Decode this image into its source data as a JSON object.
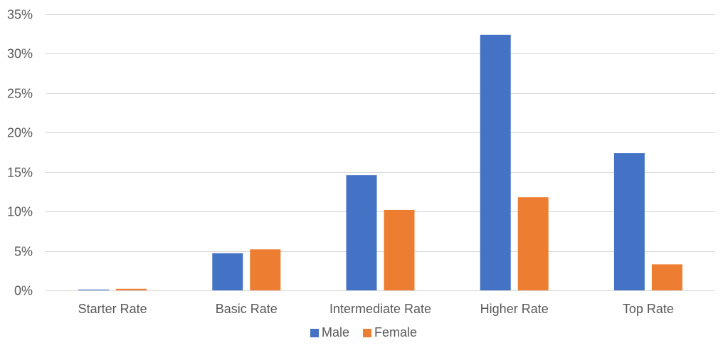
{
  "chart_data": {
    "type": "bar",
    "title": "",
    "xlabel": "",
    "ylabel": "",
    "categories": [
      "Starter Rate",
      "Basic Rate",
      "Intermediate Rate",
      "Higher Rate",
      "Top Rate"
    ],
    "series": [
      {
        "name": "Male",
        "color": "#4472c4",
        "values": [
          0.1,
          4.7,
          14.6,
          32.4,
          17.4
        ]
      },
      {
        "name": "Female",
        "color": "#ed7d31",
        "values": [
          0.2,
          5.2,
          10.2,
          11.8,
          3.3
        ]
      }
    ],
    "ylim": [
      0,
      35
    ],
    "yticks": [
      0,
      5,
      10,
      15,
      20,
      25,
      30,
      35
    ],
    "ytick_labels": [
      "0%",
      "5%",
      "10%",
      "15%",
      "20%",
      "25%",
      "30%",
      "35%"
    ],
    "grid": true,
    "legend_position": "bottom"
  }
}
